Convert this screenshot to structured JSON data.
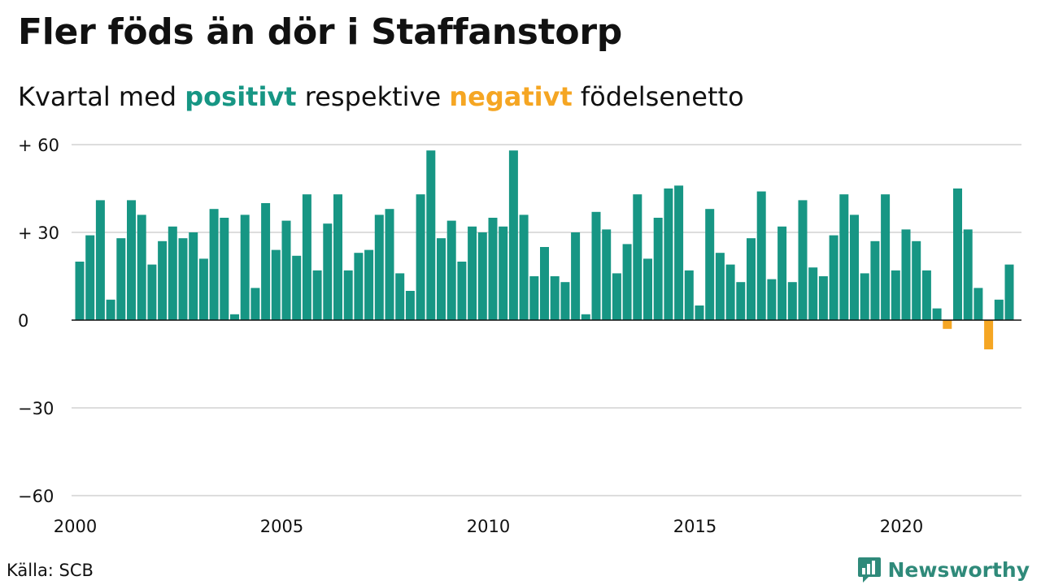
{
  "title": "Fler föds än dör i Staffanstorp",
  "subtitle": {
    "prefix": "Kvartal med",
    "positive": "positivt",
    "middle": "respektive",
    "negative": "negativt",
    "suffix": "födelsenetto"
  },
  "colors": {
    "positive": "#179684",
    "negative": "#f5a623",
    "brand": "#2f8a7a",
    "grid": "#dddddd"
  },
  "source": "Källa: SCB",
  "brand": {
    "name": "Newsworthy",
    "icon": "newsworthy-logo-icon"
  },
  "chart_data": {
    "type": "bar",
    "title": "Fler föds än dör i Staffanstorp",
    "xlabel": "",
    "ylabel": "",
    "ylim": [
      -60,
      60
    ],
    "y_ticks": [
      {
        "value": 60,
        "label": "+ 60"
      },
      {
        "value": 30,
        "label": "+ 30"
      },
      {
        "value": 0,
        "label": "0"
      },
      {
        "value": -30,
        "label": "−30"
      },
      {
        "value": -60,
        "label": "−60"
      }
    ],
    "x_ticks": [
      "2000",
      "2005",
      "2010",
      "2015",
      "2020"
    ],
    "start_year": 2000,
    "grid": true,
    "values": [
      20,
      29,
      41,
      7,
      28,
      41,
      36,
      19,
      27,
      32,
      28,
      30,
      21,
      38,
      35,
      2,
      36,
      11,
      40,
      24,
      34,
      22,
      43,
      17,
      33,
      43,
      17,
      23,
      24,
      36,
      38,
      16,
      10,
      43,
      58,
      28,
      34,
      20,
      32,
      30,
      35,
      32,
      58,
      36,
      15,
      25,
      15,
      13,
      30,
      2,
      37,
      31,
      16,
      26,
      43,
      21,
      35,
      45,
      46,
      17,
      5,
      38,
      23,
      19,
      13,
      28,
      44,
      14,
      32,
      13,
      41,
      18,
      15,
      29,
      43,
      36,
      16,
      27,
      43,
      17,
      31,
      27,
      17,
      4,
      -3,
      45,
      31,
      11,
      -10,
      7,
      19
    ]
  }
}
